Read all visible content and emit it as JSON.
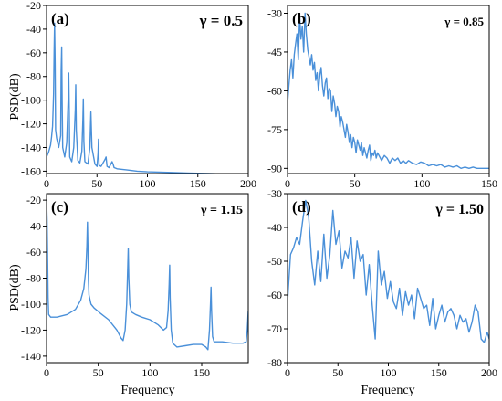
{
  "figure": {
    "shared_ylabel": "PSD(dB)",
    "shared_xlabel": "Frequency",
    "line_color": "#4a90d9"
  },
  "chart_data": [
    {
      "panel_label": "(a)",
      "annotation": "γ = 0.5",
      "type": "line",
      "xlim": [
        0,
        200
      ],
      "ylim": [
        -162,
        -20
      ],
      "xticks": [
        0,
        50,
        100,
        150,
        200
      ],
      "yticks": [
        -160,
        -140,
        -120,
        -100,
        -80,
        -60,
        -40,
        -20
      ],
      "x": [
        0,
        2,
        4,
        5,
        6,
        7,
        7.5,
        8,
        8.5,
        9,
        10,
        12,
        14,
        14.5,
        15,
        15.5,
        16,
        18,
        20,
        21.5,
        22,
        22.5,
        23,
        25,
        27,
        28.5,
        29,
        29.5,
        31,
        33,
        35,
        36,
        36.5,
        37,
        38,
        41,
        43,
        43.5,
        44,
        45,
        48,
        50,
        51,
        51.5,
        52,
        54,
        58,
        59,
        60,
        62,
        65,
        66,
        67,
        70,
        80,
        90,
        100,
        120,
        140,
        160,
        180,
        200
      ],
      "y": [
        -148,
        -144,
        -138,
        -131,
        -122,
        -95,
        -58,
        -35,
        -70,
        -125,
        -132,
        -140,
        -130,
        -75,
        -55,
        -100,
        -140,
        -148,
        -136,
        -97,
        -77,
        -110,
        -148,
        -152,
        -140,
        -108,
        -87,
        -125,
        -151,
        -153,
        -143,
        -117,
        -99,
        -135,
        -152,
        -154,
        -140,
        -123,
        -110,
        -140,
        -154,
        -156,
        -145,
        -133,
        -155,
        -156,
        -150,
        -148,
        -156,
        -157,
        -152,
        -154,
        -157,
        -158,
        -159,
        -160,
        -160.5,
        -161,
        -161.5,
        -162,
        -162.5,
        -163
      ]
    },
    {
      "panel_label": "(b)",
      "annotation": "γ = 0.85",
      "type": "line",
      "xlim": [
        0,
        150
      ],
      "ylim": [
        -92,
        -27
      ],
      "xticks": [
        0,
        50,
        100,
        150
      ],
      "yticks": [
        -90,
        -75,
        -60,
        -45,
        -30
      ],
      "x": [
        0,
        1,
        2,
        3,
        4,
        5,
        6,
        7,
        8,
        9,
        10,
        11,
        12,
        13,
        14,
        15,
        16,
        17,
        18,
        19,
        20,
        21,
        22,
        23,
        24,
        25,
        26,
        27,
        28,
        29,
        30,
        31,
        32,
        33,
        34,
        35,
        36,
        37,
        38,
        39,
        40,
        41,
        42,
        43,
        44,
        45,
        46,
        47,
        48,
        49,
        50,
        51,
        52,
        53,
        54,
        55,
        56,
        57,
        58,
        59,
        60,
        61,
        62,
        63,
        64,
        65,
        66,
        67,
        68,
        69,
        70,
        72,
        74,
        76,
        78,
        80,
        82,
        84,
        86,
        88,
        90,
        93,
        96,
        99,
        102,
        105,
        108,
        111,
        114,
        117,
        120,
        123,
        126,
        129,
        132,
        135,
        138,
        141,
        144,
        147,
        150
      ],
      "y": [
        -65,
        -58,
        -52,
        -48,
        -55,
        -46,
        -42,
        -38,
        -48,
        -31,
        -40,
        -35,
        -45,
        -30,
        -38,
        -44,
        -47,
        -50,
        -46,
        -52,
        -49,
        -56,
        -53,
        -60,
        -54,
        -51,
        -58,
        -62,
        -57,
        -55,
        -63,
        -59,
        -60,
        -68,
        -62,
        -65,
        -70,
        -66,
        -68,
        -74,
        -70,
        -72,
        -75,
        -78,
        -73,
        -76,
        -80,
        -77,
        -82,
        -78,
        -80,
        -84,
        -79,
        -81,
        -83,
        -80,
        -85,
        -82,
        -84,
        -86,
        -83,
        -81,
        -87,
        -84,
        -85,
        -83,
        -86,
        -84,
        -85,
        -86,
        -87,
        -85,
        -86,
        -88,
        -86,
        -87,
        -86,
        -88,
        -87,
        -88,
        -87,
        -88,
        -88.5,
        -87.5,
        -88,
        -89,
        -88.5,
        -89,
        -88.5,
        -89.5,
        -89,
        -89.5,
        -89,
        -90,
        -89.5,
        -90,
        -89.5,
        -90,
        -90,
        -90,
        -90
      ]
    },
    {
      "panel_label": "(c)",
      "annotation": "γ = 1.15",
      "type": "line",
      "xlim": [
        0,
        195
      ],
      "ylim": [
        -145,
        -15
      ],
      "xticks": [
        0,
        50,
        100,
        150
      ],
      "yticks": [
        -140,
        -120,
        -100,
        -80,
        -60,
        -40,
        -20
      ],
      "x": [
        0,
        0.5,
        1,
        1.5,
        2,
        4,
        10,
        20,
        28,
        33,
        36,
        38,
        39,
        39.5,
        40,
        40.5,
        41,
        43,
        46,
        52,
        60,
        68,
        72,
        74,
        76,
        77.5,
        78.5,
        79,
        79.5,
        80.5,
        82,
        86,
        92,
        100,
        108,
        113,
        116,
        117.5,
        118.5,
        119,
        119.5,
        120.5,
        122,
        126,
        134,
        142,
        150,
        154,
        156,
        157.5,
        158.5,
        159,
        159.5,
        160.5,
        162,
        170,
        180,
        190,
        193,
        194,
        195
      ],
      "y": [
        -20,
        -35,
        -60,
        -95,
        -108,
        -110,
        -110,
        -108,
        -104,
        -97,
        -88,
        -73,
        -55,
        -37,
        -55,
        -82,
        -93,
        -100,
        -103,
        -107,
        -112,
        -120,
        -126,
        -128,
        -120,
        -100,
        -70,
        -57,
        -80,
        -100,
        -106,
        -108,
        -110,
        -112,
        -116,
        -120,
        -118,
        -105,
        -85,
        -70,
        -95,
        -120,
        -130,
        -133,
        -132,
        -131,
        -131,
        -133,
        -135,
        -120,
        -100,
        -87,
        -105,
        -125,
        -129,
        -129,
        -130,
        -130,
        -129,
        -120,
        -105
      ]
    },
    {
      "panel_label": "(d)",
      "annotation": "γ = 1.50",
      "type": "line",
      "xlim": [
        0,
        200
      ],
      "ylim": [
        -80,
        -30
      ],
      "xticks": [
        0,
        50,
        100,
        150,
        200
      ],
      "yticks": [
        -80,
        -70,
        -60,
        -50,
        -40,
        -30
      ],
      "x": [
        0,
        3,
        6,
        9,
        12,
        15,
        18,
        21,
        24,
        27,
        30,
        33,
        36,
        39,
        42,
        45,
        48,
        51,
        54,
        57,
        60,
        63,
        66,
        69,
        72,
        75,
        78,
        81,
        84,
        87,
        90,
        93,
        96,
        99,
        102,
        105,
        108,
        111,
        114,
        117,
        120,
        123,
        126,
        129,
        132,
        135,
        138,
        141,
        144,
        147,
        150,
        153,
        156,
        159,
        162,
        165,
        168,
        171,
        174,
        177,
        180,
        183,
        186,
        189,
        192,
        195,
        198,
        200
      ],
      "y": [
        -62,
        -48,
        -46,
        -43,
        -45,
        -38,
        -32,
        -37,
        -50,
        -57,
        -47,
        -56,
        -42,
        -55,
        -48,
        -35,
        -45,
        -41,
        -52,
        -47,
        -49,
        -43,
        -55,
        -44,
        -50,
        -48,
        -60,
        -51,
        -63,
        -73,
        -47,
        -57,
        -53,
        -61,
        -56,
        -62,
        -64,
        -58,
        -66,
        -59,
        -63,
        -60,
        -67,
        -58,
        -61,
        -64,
        -63,
        -69,
        -61,
        -70,
        -66,
        -63,
        -68,
        -65,
        -64,
        -66,
        -70,
        -66,
        -68,
        -67,
        -71,
        -68,
        -63,
        -65,
        -73,
        -74,
        -71,
        -73
      ]
    }
  ]
}
